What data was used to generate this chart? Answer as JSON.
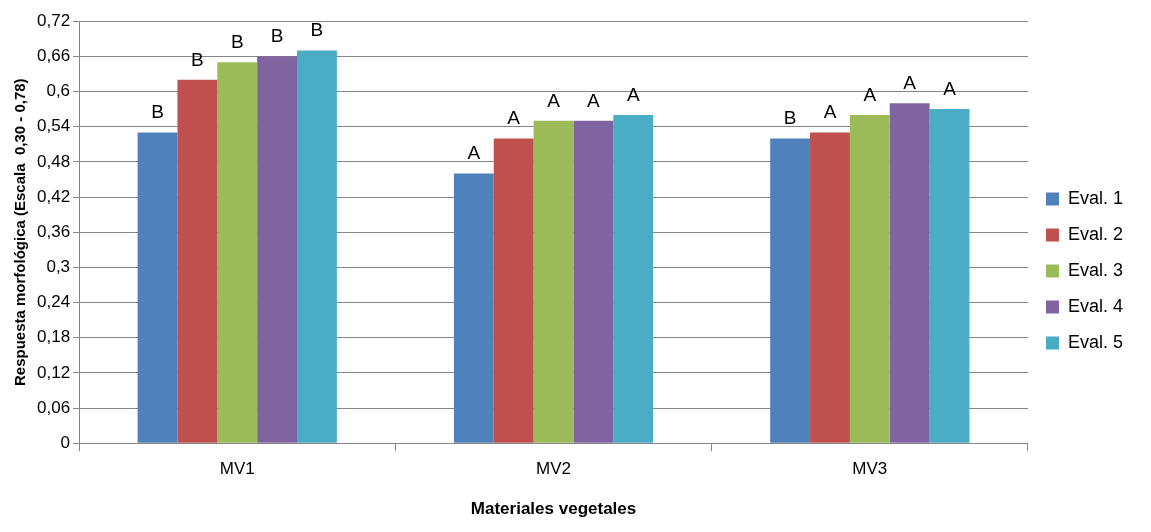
{
  "chart_data": {
    "type": "bar",
    "xlabel": "Materiales vegetales",
    "ylabel": "Respuesta morfológica (Escala  0,30 - 0,78)",
    "categories": [
      "MV1",
      "MV2",
      "MV3"
    ],
    "series": [
      {
        "name": "Eval. 1",
        "color": "#4f81bd",
        "values": [
          0.53,
          0.46,
          0.52
        ],
        "value_labels": [
          "B",
          "A",
          "B"
        ]
      },
      {
        "name": "Eval. 2",
        "color": "#c0504d",
        "values": [
          0.62,
          0.52,
          0.53
        ],
        "value_labels": [
          "B",
          "A",
          "A"
        ]
      },
      {
        "name": "Eval. 3",
        "color": "#9bbb59",
        "values": [
          0.65,
          0.55,
          0.56
        ],
        "value_labels": [
          "B",
          "A",
          "A"
        ]
      },
      {
        "name": "Eval. 4",
        "color": "#8064a2",
        "values": [
          0.66,
          0.55,
          0.58
        ],
        "value_labels": [
          "B",
          "A",
          "A"
        ]
      },
      {
        "name": "Eval. 5",
        "color": "#4bacc6",
        "values": [
          0.67,
          0.56,
          0.57
        ],
        "value_labels": [
          "B",
          "A",
          "A"
        ]
      }
    ],
    "ylim": [
      0,
      0.72
    ],
    "yticks": [
      0,
      {
        "value": 0.06,
        "label": "0,06"
      },
      {
        "value": 0.12,
        "label": "0,12"
      },
      {
        "value": 0.18,
        "label": "0,18"
      },
      {
        "value": 0.24,
        "label": "0,24"
      },
      {
        "value": 0.3,
        "label": "0,3"
      },
      {
        "value": 0.36,
        "label": "0,36"
      },
      {
        "value": 0.42,
        "label": "0,42"
      },
      {
        "value": 0.48,
        "label": "0,48"
      },
      {
        "value": 0.54,
        "label": "0,54"
      },
      {
        "value": 0.6,
        "label": "0,6"
      },
      {
        "value": 0.66,
        "label": "0,66"
      },
      {
        "value": 0.72,
        "label": "0,72"
      }
    ],
    "grid": "y",
    "legend": "right"
  }
}
